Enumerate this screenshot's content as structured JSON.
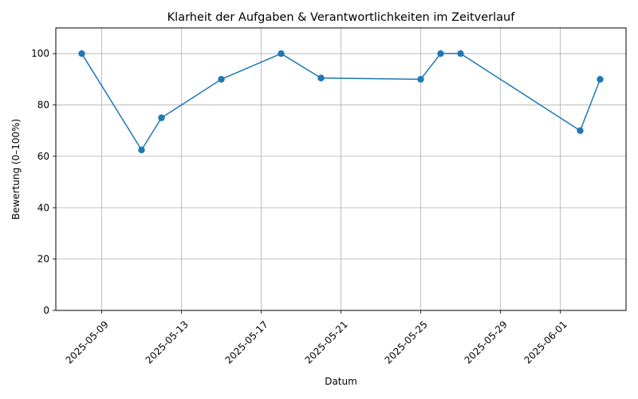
{
  "chart_data": {
    "type": "line",
    "title": "Klarheit der Aufgaben & Verantwortlichkeiten im Zeitverlauf",
    "xlabel": "Datum",
    "ylabel": "Bewertung (0–100%)",
    "ylim": [
      0,
      110
    ],
    "xlim": [
      "2025-05-06T16:48",
      "2025-06-04T07:12"
    ],
    "grid": true,
    "line_color": "#1f77b4",
    "x_ticks": [
      "2025-05-09",
      "2025-05-13",
      "2025-05-17",
      "2025-05-21",
      "2025-05-25",
      "2025-05-29",
      "2025-06-01"
    ],
    "y_ticks": [
      0,
      20,
      40,
      60,
      80,
      100
    ],
    "series": [
      {
        "x": [
          "2025-05-08",
          "2025-05-11",
          "2025-05-12",
          "2025-05-15",
          "2025-05-18",
          "2025-05-20",
          "2025-05-25",
          "2025-05-26",
          "2025-05-27",
          "2025-06-02",
          "2025-06-03"
        ],
        "values": [
          100,
          62.5,
          75,
          90,
          100,
          90.5,
          90,
          100,
          100,
          70,
          90
        ]
      }
    ]
  }
}
